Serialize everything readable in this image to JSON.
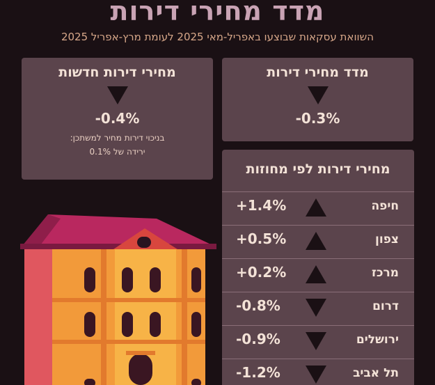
{
  "header": {
    "title": "מדד מחירי דירות",
    "subtitle": "השוואת עסקאות שבוצעו באפריל-מאי 2025 לעומת מרץ-אפריל 2025"
  },
  "cards": {
    "index": {
      "title": "מדד מחירי דירות",
      "value": "-0.3%",
      "direction": "down"
    },
    "new": {
      "title": "מחירי דירות חדשות",
      "value": "-0.4%",
      "direction": "down",
      "note_line1": "בניכוי דירות מחיר למשתכן:",
      "note_line2": "ירידה של 0.1%"
    }
  },
  "districts": {
    "title": "מחירי דירות לפי מחוזות",
    "rows": [
      {
        "name": "חיפה",
        "value": "+1.4%",
        "direction": "up"
      },
      {
        "name": "צפון",
        "value": "+0.5%",
        "direction": "up"
      },
      {
        "name": "מרכז",
        "value": "+0.2%",
        "direction": "up"
      },
      {
        "name": "דרום",
        "value": "-0.8%",
        "direction": "down"
      },
      {
        "name": "ירושלים",
        "value": "-0.9%",
        "direction": "down"
      },
      {
        "name": "תל אביב",
        "value": "-1.2%",
        "direction": "down"
      }
    ]
  },
  "colors": {
    "background": "#1a1014",
    "card": "#5b444c",
    "title": "#c9a3b4",
    "subtitle": "#d8a88a"
  },
  "icons": {
    "decrease": "down-triangle-icon",
    "increase": "up-triangle-icon",
    "illustration": "apartment-building-illustration"
  }
}
